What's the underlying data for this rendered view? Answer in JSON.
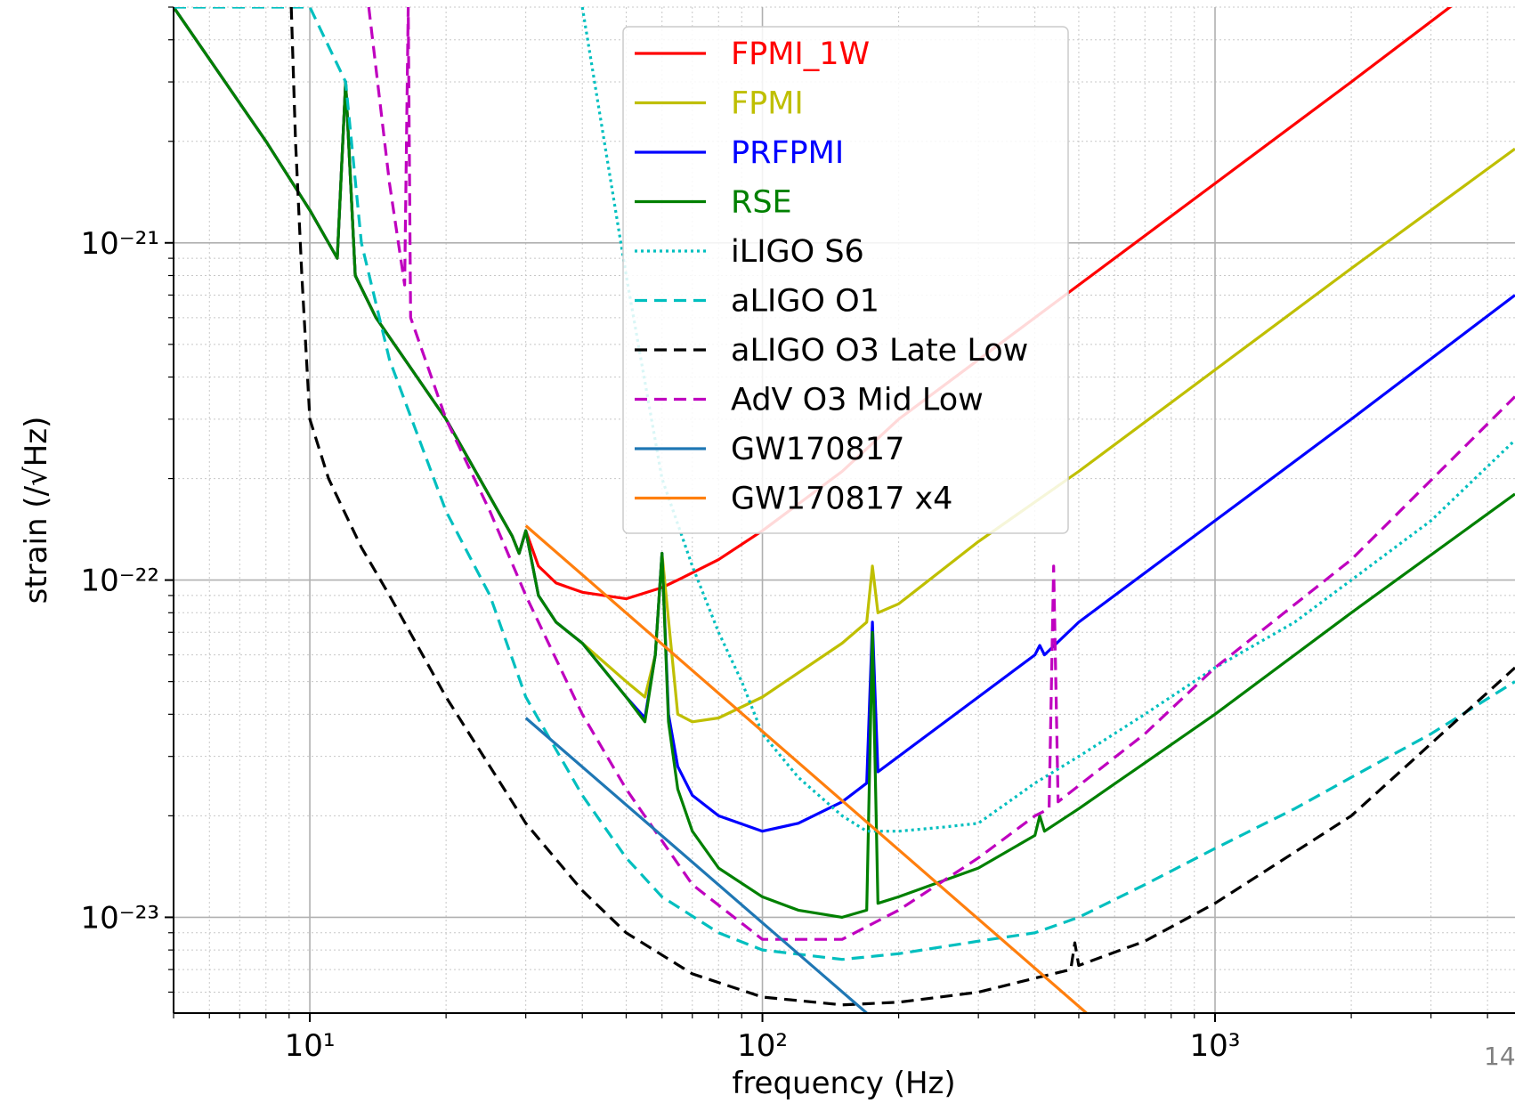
{
  "page_number": "14",
  "chart_data": {
    "type": "line",
    "title": "",
    "xlabel": "frequency (Hz)",
    "ylabel": "strain (/√Hz)",
    "xscale": "log",
    "yscale": "log",
    "xlim": [
      5,
      4600
    ],
    "ylim": [
      5.2e-24,
      5e-21
    ],
    "xticks": [
      {
        "value": 10,
        "label": "10¹"
      },
      {
        "value": 100,
        "label": "10²"
      },
      {
        "value": 1000,
        "label": "10³"
      }
    ],
    "yticks": [
      {
        "value": 1e-23,
        "label": "10⁻²³"
      },
      {
        "value": 1e-22,
        "label": "10⁻²²"
      },
      {
        "value": 1e-21,
        "label": "10⁻²¹"
      }
    ],
    "grid": true,
    "legend_position": "top-center",
    "series": [
      {
        "name": "FPMI_1W",
        "color": "#ff0000",
        "dash": "solid",
        "x": [
          5,
          8,
          10,
          11.5,
          12,
          12.6,
          14,
          20,
          28,
          29,
          30,
          32,
          35,
          40,
          50,
          60,
          65,
          80,
          100,
          150,
          200,
          300,
          500,
          1000,
          2000,
          4600
        ],
        "y": [
          5e-21,
          2e-21,
          1.25e-21,
          9e-22,
          3e-21,
          8e-22,
          6e-22,
          3e-22,
          1.35e-22,
          1.2e-22,
          1.4e-22,
          1.1e-22,
          9.8e-23,
          9.2e-23,
          8.8e-23,
          9.5e-23,
          1e-22,
          1.15e-22,
          1.4e-22,
          2.1e-22,
          3e-22,
          4.5e-22,
          7.5e-22,
          1.5e-21,
          3e-21,
          7e-21
        ]
      },
      {
        "name": "FPMI",
        "color": "#bfbf00",
        "dash": "solid",
        "x": [
          5,
          8,
          10,
          11.5,
          12,
          12.6,
          14,
          20,
          28,
          29,
          30,
          32,
          35,
          40,
          50,
          55,
          58,
          60,
          65,
          70,
          80,
          100,
          150,
          170,
          175,
          180,
          200,
          300,
          500,
          1000,
          2000,
          4600
        ],
        "y": [
          5e-21,
          2e-21,
          1.25e-21,
          9e-22,
          3e-21,
          8e-22,
          6e-22,
          3e-22,
          1.35e-22,
          1.2e-22,
          1.4e-22,
          9e-23,
          7.5e-23,
          6.5e-23,
          5e-23,
          4.5e-23,
          6e-23,
          1.2e-22,
          4e-23,
          3.8e-23,
          3.9e-23,
          4.5e-23,
          6.5e-23,
          7.5e-23,
          1.1e-22,
          8e-23,
          8.5e-23,
          1.3e-22,
          2.1e-22,
          4.2e-22,
          8.4e-22,
          1.9e-21
        ]
      },
      {
        "name": "PRFPMI",
        "color": "#0000ff",
        "dash": "solid",
        "x": [
          5,
          8,
          10,
          11.5,
          12,
          12.6,
          14,
          20,
          28,
          29,
          30,
          32,
          35,
          40,
          50,
          55,
          58,
          60,
          62,
          65,
          70,
          80,
          100,
          120,
          150,
          170,
          175,
          180,
          200,
          300,
          400,
          410,
          420,
          500,
          1000,
          2000,
          4600
        ],
        "y": [
          5e-21,
          2e-21,
          1.25e-21,
          9e-22,
          3e-21,
          8e-22,
          6e-22,
          3e-22,
          1.35e-22,
          1.2e-22,
          1.4e-22,
          9e-23,
          7.5e-23,
          6.5e-23,
          4.5e-23,
          3.9e-23,
          6e-23,
          1.2e-22,
          4e-23,
          2.8e-23,
          2.3e-23,
          2e-23,
          1.8e-23,
          1.9e-23,
          2.2e-23,
          2.5e-23,
          7.5e-23,
          2.7e-23,
          3e-23,
          4.5e-23,
          6e-23,
          6.4e-23,
          6e-23,
          7.5e-23,
          1.5e-22,
          3e-22,
          7e-22
        ]
      },
      {
        "name": "RSE",
        "color": "#008000",
        "dash": "solid",
        "x": [
          5,
          8,
          10,
          11.5,
          12,
          12.6,
          14,
          20,
          28,
          29,
          30,
          32,
          35,
          40,
          50,
          55,
          58,
          60,
          62,
          65,
          70,
          80,
          100,
          120,
          150,
          170,
          175,
          180,
          200,
          300,
          400,
          410,
          420,
          500,
          1000,
          2000,
          4600
        ],
        "y": [
          5e-21,
          2e-21,
          1.25e-21,
          9e-22,
          3e-21,
          8e-22,
          6e-22,
          3e-22,
          1.35e-22,
          1.2e-22,
          1.4e-22,
          9e-23,
          7.5e-23,
          6.5e-23,
          4.5e-23,
          3.8e-23,
          6e-23,
          1.2e-22,
          3.8e-23,
          2.4e-23,
          1.8e-23,
          1.4e-23,
          1.15e-23,
          1.05e-23,
          1e-23,
          1.05e-23,
          7e-23,
          1.1e-23,
          1.15e-23,
          1.4e-23,
          1.75e-23,
          2e-23,
          1.8e-23,
          2.1e-23,
          4e-23,
          8e-23,
          1.8e-22
        ]
      },
      {
        "name": "iLIGO S6",
        "color": "#00bfbf",
        "dash": "dotted",
        "x": [
          40,
          50,
          60,
          70,
          80,
          90,
          100,
          120,
          150,
          170,
          200,
          250,
          300,
          350,
          400,
          500,
          700,
          1000,
          1500,
          2000,
          3000,
          4600
        ],
        "y": [
          5e-21,
          8e-22,
          2e-22,
          1.1e-22,
          7e-23,
          5e-23,
          3.5e-23,
          2.6e-23,
          2e-23,
          1.8e-23,
          1.8e-23,
          1.85e-23,
          1.9e-23,
          2.2e-23,
          2.5e-23,
          3e-23,
          4e-23,
          5.5e-23,
          7.5e-23,
          1e-22,
          1.5e-22,
          2.6e-22
        ]
      },
      {
        "name": "aLIGO O1",
        "color": "#00bfbf",
        "dash": "dashed",
        "x": [
          5,
          8,
          10,
          12,
          13,
          15,
          20,
          25,
          30,
          40,
          50,
          60,
          80,
          100,
          150,
          200,
          300,
          400,
          500,
          700,
          1000,
          1500,
          2000,
          3000,
          4600
        ],
        "y": [
          5e-21,
          5e-21,
          5e-21,
          3e-21,
          1e-21,
          4.5e-22,
          1.6e-22,
          9e-23,
          4.5e-23,
          2.3e-23,
          1.5e-23,
          1.15e-23,
          9e-24,
          8e-24,
          7.5e-24,
          7.8e-24,
          8.5e-24,
          9e-24,
          1e-23,
          1.25e-23,
          1.6e-23,
          2.1e-23,
          2.6e-23,
          3.5e-23,
          5e-23
        ]
      },
      {
        "name": "aLIGO O3 Late Low",
        "color": "#000000",
        "dash": "dashed",
        "x": [
          9.1,
          9.3,
          9.6,
          10,
          11,
          13,
          15,
          20,
          30,
          40,
          50,
          70,
          100,
          150,
          200,
          300,
          400,
          480,
          490,
          500,
          700,
          1000,
          2000,
          4600
        ],
        "y": [
          5e-21,
          2e-21,
          8e-22,
          3e-22,
          2e-22,
          1.25e-22,
          9e-23,
          4.5e-23,
          1.9e-23,
          1.2e-23,
          9e-24,
          6.8e-24,
          5.8e-24,
          5.5e-24,
          5.6e-24,
          6e-24,
          6.6e-24,
          7e-24,
          8.4e-24,
          7.2e-24,
          8.5e-24,
          1.1e-23,
          2e-23,
          5.5e-23
        ]
      },
      {
        "name": "AdV O3 Mid Low",
        "color": "#bf00bf",
        "dash": "dashed",
        "x": [
          13.5,
          15,
          16.2,
          16.5,
          16.7,
          18,
          20,
          25,
          30,
          40,
          50,
          70,
          100,
          150,
          200,
          300,
          400,
          430,
          440,
          450,
          700,
          1000,
          2000,
          4600
        ],
        "y": [
          5e-21,
          1.5e-21,
          7.5e-22,
          5e-21,
          6e-22,
          4.5e-22,
          3e-22,
          1.6e-22,
          9e-23,
          4e-23,
          2.4e-23,
          1.25e-23,
          8.6e-24,
          8.6e-24,
          1.05e-23,
          1.5e-23,
          2e-23,
          2.1e-23,
          1.1e-22,
          2.2e-23,
          3.5e-23,
          5.5e-23,
          1.15e-22,
          3.5e-22
        ]
      },
      {
        "name": "GW170817",
        "color": "#1f77b4",
        "dash": "solid",
        "x": [
          30,
          170
        ],
        "y": [
          3.9e-23,
          5.2e-24
        ]
      },
      {
        "name": "GW170817 x4",
        "color": "#ff7f0e",
        "dash": "solid",
        "x": [
          30,
          520
        ],
        "y": [
          1.45e-22,
          5.2e-24
        ]
      }
    ]
  }
}
